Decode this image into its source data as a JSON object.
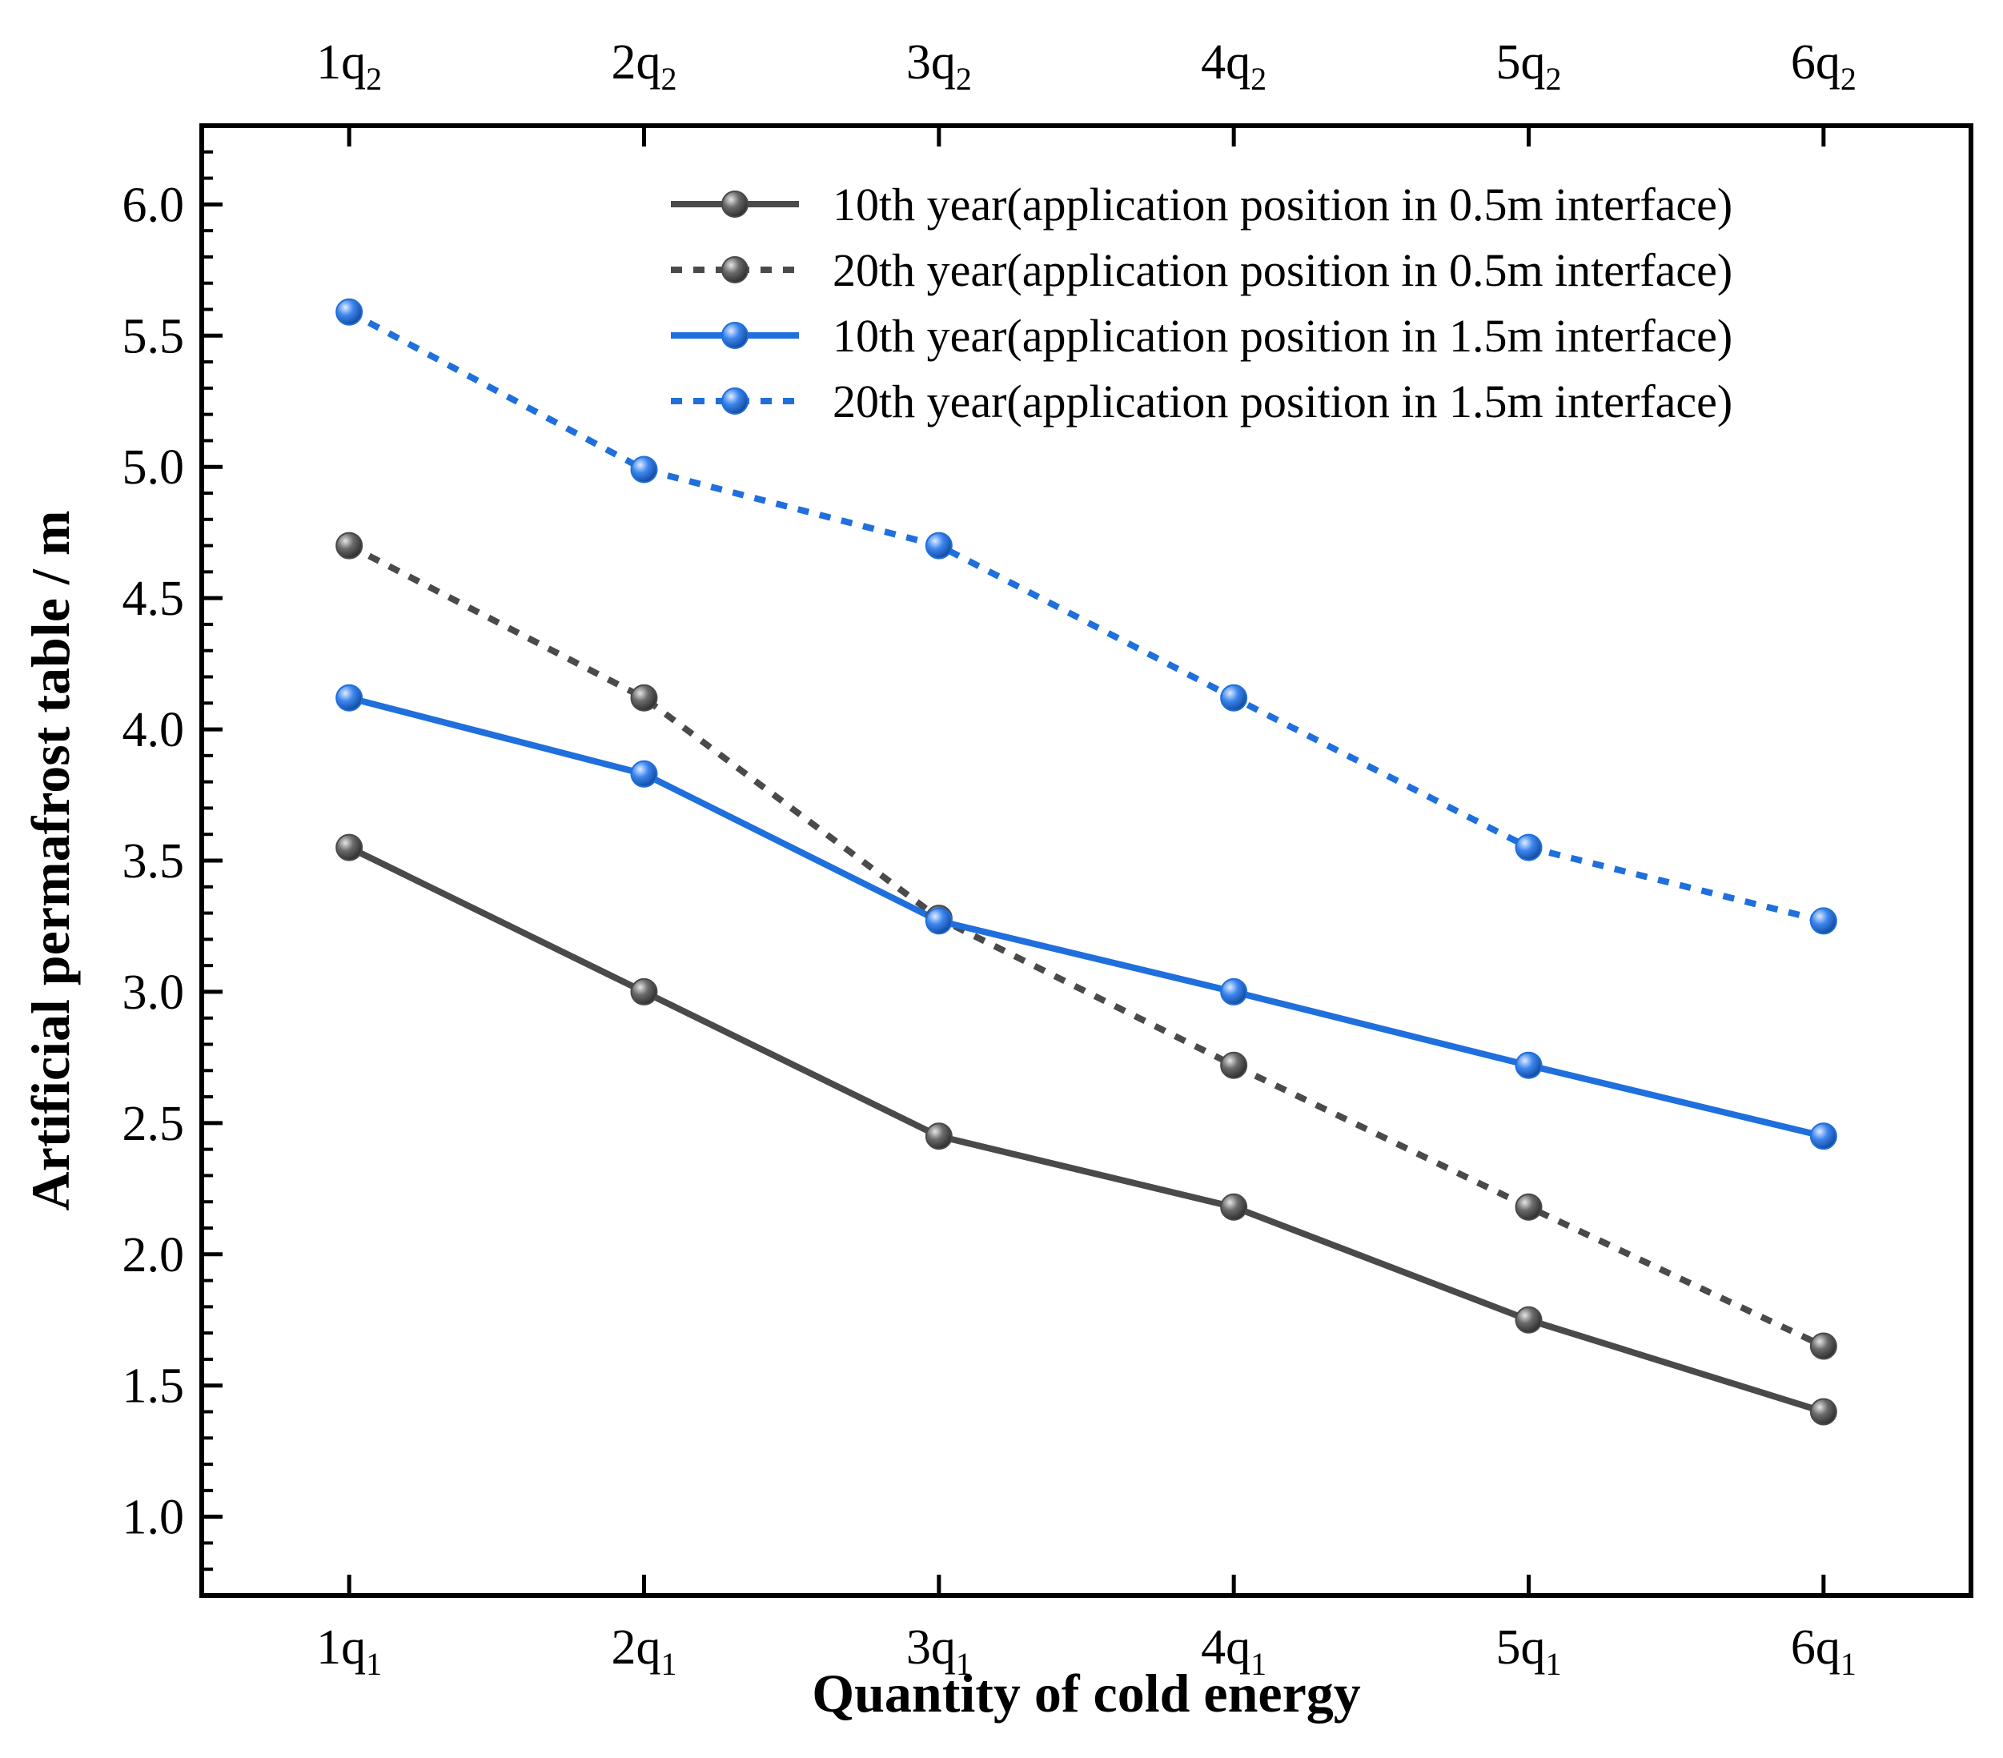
{
  "chart_data": {
    "type": "line",
    "title": "",
    "xlabel": "Quantity of cold energy",
    "ylabel": "Artificial permafrost table / m",
    "bottom_ticks": [
      {
        "base": "1q",
        "sub": "1"
      },
      {
        "base": "2q",
        "sub": "1"
      },
      {
        "base": "3q",
        "sub": "1"
      },
      {
        "base": "4q",
        "sub": "1"
      },
      {
        "base": "5q",
        "sub": "1"
      },
      {
        "base": "6q",
        "sub": "1"
      }
    ],
    "top_ticks": [
      {
        "base": "1q",
        "sub": "2"
      },
      {
        "base": "2q",
        "sub": "2"
      },
      {
        "base": "3q",
        "sub": "2"
      },
      {
        "base": "4q",
        "sub": "2"
      },
      {
        "base": "5q",
        "sub": "2"
      },
      {
        "base": "6q",
        "sub": "2"
      }
    ],
    "x": [
      1,
      2,
      3,
      4,
      5,
      6
    ],
    "xlim": [
      0.5,
      6.5
    ],
    "ylim": [
      0.7,
      6.3
    ],
    "yticks": [
      1.0,
      1.5,
      2.0,
      2.5,
      3.0,
      3.5,
      4.0,
      4.5,
      5.0,
      5.5,
      6.0
    ],
    "ytick_labels": [
      "1.0",
      "1.5",
      "2.0",
      "2.5",
      "3.0",
      "3.5",
      "4.0",
      "4.5",
      "5.0",
      "5.5",
      "6.0"
    ],
    "legend_position": "top-right",
    "grid": false,
    "series": [
      {
        "name": "10th year(application position in 0.5m interface)",
        "values": [
          3.55,
          3.0,
          2.45,
          2.18,
          1.75,
          1.4
        ],
        "color": "#4a4a4a",
        "dash": "solid"
      },
      {
        "name": "20th year(application position in 0.5m interface)",
        "values": [
          4.7,
          4.12,
          3.28,
          2.72,
          2.18,
          1.65
        ],
        "color": "#4a4a4a",
        "dash": "dotted"
      },
      {
        "name": "10th year(application position in 1.5m interface)",
        "values": [
          4.12,
          3.83,
          3.27,
          3.0,
          2.72,
          2.45
        ],
        "color": "#1f6fdc",
        "dash": "solid"
      },
      {
        "name": "20th year(application position in 1.5m interface)",
        "values": [
          5.59,
          4.99,
          4.7,
          4.12,
          3.55,
          3.27
        ],
        "color": "#1f6fdc",
        "dash": "dotted"
      }
    ]
  }
}
